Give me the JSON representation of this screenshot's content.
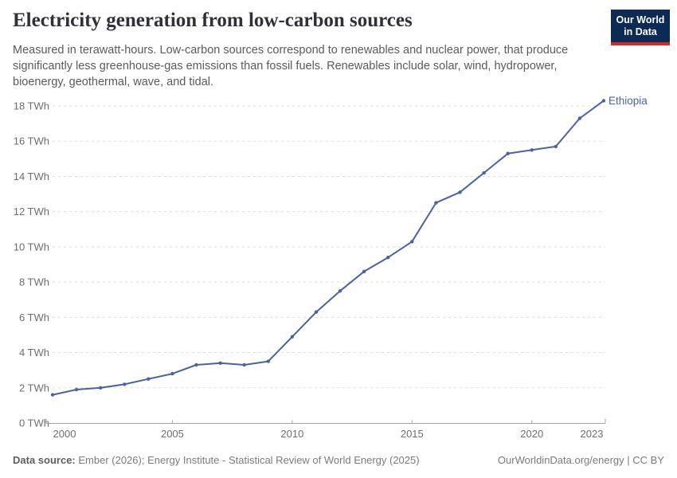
{
  "header": {
    "title": "Electricity generation from low-carbon sources",
    "subtitle": "Measured in terawatt-hours. Low-carbon sources correspond to renewables and nuclear power, that produce significantly less greenhouse-gas emissions than fossil fuels. Renewables include solar, wind, hydropower, bioenergy, geothermal, wave, and tidal.",
    "logo": {
      "line1": "Our World",
      "line2": "in Data"
    }
  },
  "chart_data": {
    "type": "line",
    "title": "Electricity generation from low-carbon sources",
    "unit": "TWh",
    "entity_label": "Ethiopia",
    "x": [
      2000,
      2001,
      2002,
      2003,
      2004,
      2005,
      2006,
      2007,
      2008,
      2009,
      2010,
      2011,
      2012,
      2013,
      2014,
      2015,
      2016,
      2017,
      2018,
      2019,
      2020,
      2021,
      2022,
      2023
    ],
    "series": [
      {
        "name": "Ethiopia",
        "color": "#4a63a0",
        "values": [
          1.6,
          1.9,
          2.0,
          2.2,
          2.5,
          2.8,
          3.3,
          3.4,
          3.3,
          3.5,
          4.9,
          6.3,
          7.5,
          8.6,
          9.4,
          10.3,
          12.5,
          13.1,
          14.2,
          15.3,
          15.5,
          15.7,
          17.3,
          18.3
        ]
      }
    ],
    "xticks": [
      2000,
      2005,
      2010,
      2015,
      2020,
      2023
    ],
    "yticks": [
      0,
      2,
      4,
      6,
      8,
      10,
      12,
      14,
      16,
      18
    ],
    "ytick_suffix": " TWh",
    "xlim": [
      2000,
      2023
    ],
    "ylim": [
      0,
      18.5
    ],
    "grid": "horizontal-dashed",
    "legend_position": "line-end-label"
  },
  "footer": {
    "datasource_label": "Data source:",
    "datasource_value": " Ember (2026); Energy Institute - Statistical Review of World Energy (2025)",
    "site": "OurWorldinData.org/energy",
    "separator": " | ",
    "license": "CC BY"
  },
  "colors": {
    "line": "#4a63a0",
    "gridline": "#dedede",
    "axis": "#a5a5a5",
    "tick_text": "#6e6e6e",
    "entity_text": "#4a63a0",
    "logo_bg": "#0b2b56",
    "logo_bar": "#d7281e"
  }
}
